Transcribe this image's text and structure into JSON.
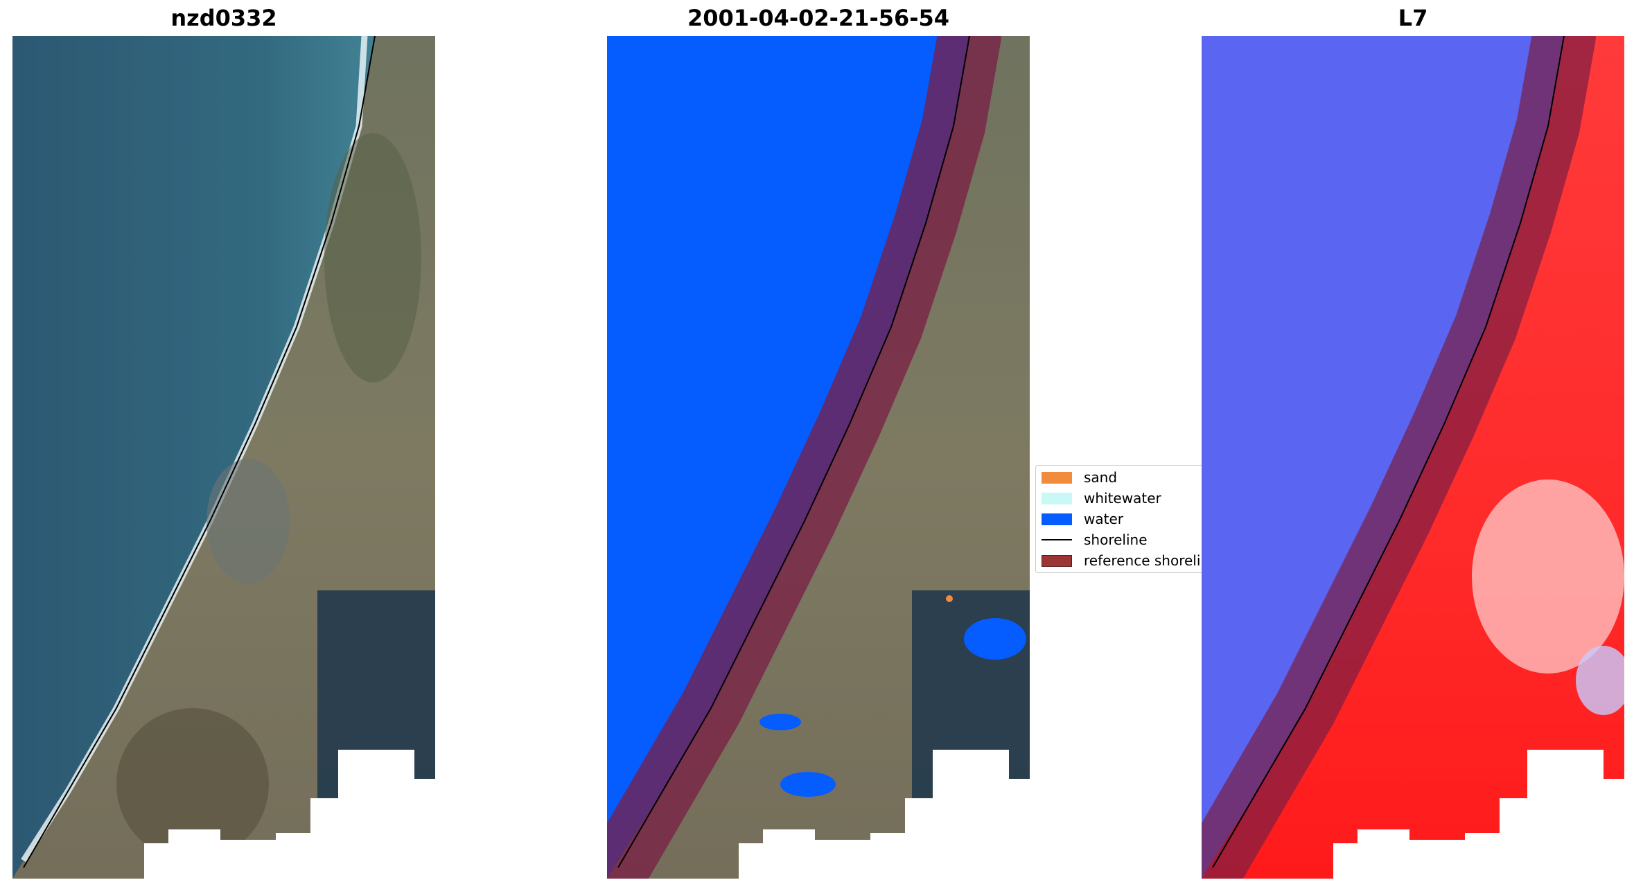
{
  "panels": [
    {
      "title": "nzd0332",
      "kind": "rgb-composite"
    },
    {
      "title": "2001-04-02-21-56-54",
      "kind": "classified-overlay"
    },
    {
      "title": "L7",
      "kind": "mndwi-heatmap"
    }
  ],
  "legend": {
    "items": [
      {
        "label": "sand",
        "color": "#f28c3c",
        "type": "patch"
      },
      {
        "label": "whitewater",
        "color": "#c9f9f7",
        "type": "patch"
      },
      {
        "label": "water",
        "color": "#055cff",
        "type": "patch"
      },
      {
        "label": "shoreline",
        "color": "#000000",
        "type": "line"
      },
      {
        "label": "reference shoreline",
        "color": "#9b3434",
        "type": "patch"
      }
    ]
  },
  "colors": {
    "ocean_deep": "#2c5872",
    "ocean_near_shore": "#4a8fa0",
    "surf": "#e6f1f3",
    "land": "#7e7a62",
    "land_dark": "#4f5846",
    "forest": "#223a4c",
    "cloud_mask": "#ffffff",
    "reference_buffer": "#7a1e44",
    "heat_water": "#5a66f2",
    "heat_land": "#ff2424"
  }
}
